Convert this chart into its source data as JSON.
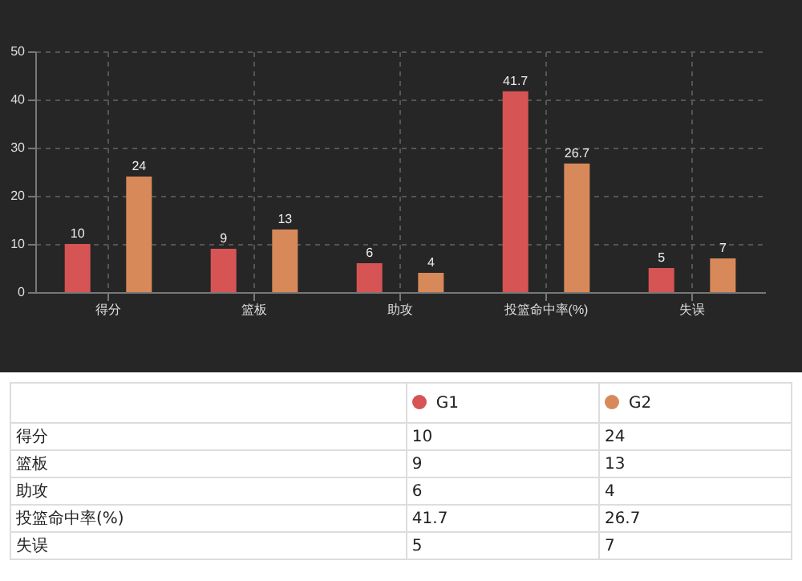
{
  "chart_data": [
    {
      "type": "bar",
      "categories": [
        "得分",
        "篮板",
        "助攻",
        "投篮命中率(%)",
        "失误"
      ],
      "series": [
        {
          "color": "#d65454",
          "values": [
            10,
            9,
            6,
            41.7,
            5
          ]
        },
        {
          "color": "#d8895a",
          "values": [
            24,
            13,
            4,
            26.7,
            7
          ]
        }
      ],
      "ylim": [
        0,
        50
      ],
      "yticks": [
        0,
        10,
        20,
        30,
        40,
        50
      ],
      "grid": true,
      "data_labels": true
    },
    {
      "type": "other",
      "categories": [
        "得分",
        "篮板",
        "助攻",
        "投篮命中率(%)",
        "失误"
      ],
      "series": [
        {
          "name": "G1",
          "color": "#d65454",
          "values": [
            10,
            9,
            6,
            41.7,
            5
          ]
        },
        {
          "name": "G2",
          "color": "#d8895a",
          "values": [
            24,
            13,
            4,
            26.7,
            7
          ]
        }
      ],
      "legend": "top",
      "data_labels": true
    }
  ]
}
